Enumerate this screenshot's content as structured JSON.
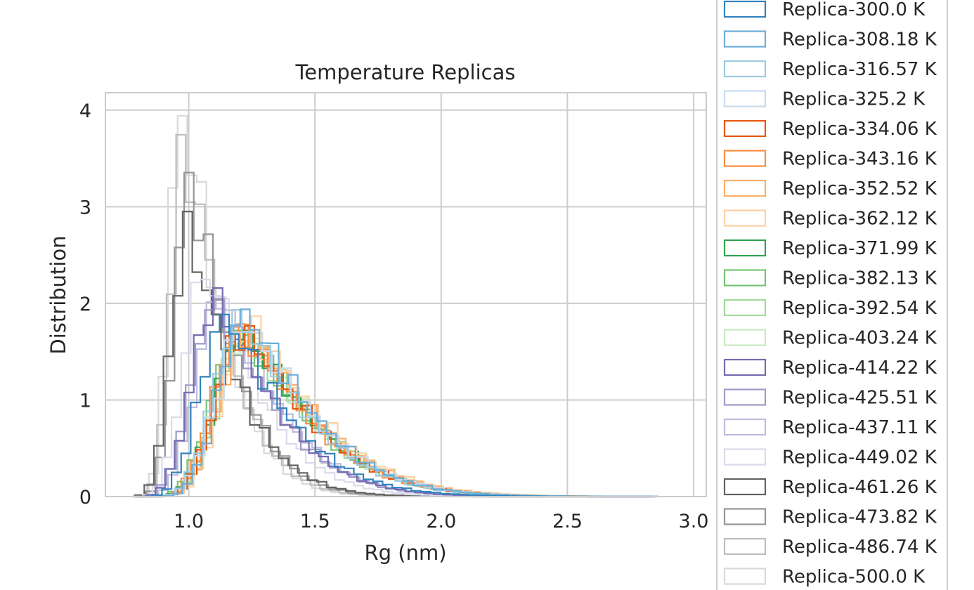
{
  "chart_data": {
    "type": "histogram-step",
    "title": "Temperature Replicas",
    "xlabel": "Rg (nm)",
    "ylabel": "Distribution",
    "xlim": [
      0.67,
      3.05
    ],
    "ylim": [
      0,
      4.18
    ],
    "x_ticks": [
      1.0,
      1.5,
      2.0,
      2.5,
      3.0
    ],
    "x_tick_labels": [
      "1.0",
      "1.5",
      "2.0",
      "2.5",
      "3.0"
    ],
    "y_ticks": [
      0,
      1,
      2,
      3,
      4
    ],
    "y_tick_labels": [
      "0",
      "1",
      "2",
      "3",
      "4"
    ],
    "grid": true,
    "legend_position": "right, outside",
    "series": [
      {
        "name": "Replica-300.0 K",
        "color": "#3182bd",
        "peak_x": 1.14,
        "peak_y": 1.83,
        "width": 0.17,
        "tail": 0.31
      },
      {
        "name": "Replica-308.18 K",
        "color": "#6baed6",
        "peak_x": 1.22,
        "peak_y": 1.88,
        "width": 0.18,
        "tail": 0.33
      },
      {
        "name": "Replica-316.57 K",
        "color": "#9ecae1",
        "peak_x": 1.2,
        "peak_y": 1.82,
        "width": 0.18,
        "tail": 0.33
      },
      {
        "name": "Replica-325.2 K",
        "color": "#c6dbef",
        "peak_x": 1.22,
        "peak_y": 1.78,
        "width": 0.19,
        "tail": 0.34
      },
      {
        "name": "Replica-334.06 K",
        "color": "#e6550d",
        "peak_x": 1.21,
        "peak_y": 1.7,
        "width": 0.18,
        "tail": 0.34
      },
      {
        "name": "Replica-343.16 K",
        "color": "#fd8d3c",
        "peak_x": 1.2,
        "peak_y": 1.72,
        "width": 0.18,
        "tail": 0.34
      },
      {
        "name": "Replica-352.52 K",
        "color": "#fdae6b",
        "peak_x": 1.23,
        "peak_y": 1.7,
        "width": 0.19,
        "tail": 0.35
      },
      {
        "name": "Replica-362.12 K",
        "color": "#fdd0a2",
        "peak_x": 1.24,
        "peak_y": 1.74,
        "width": 0.19,
        "tail": 0.35
      },
      {
        "name": "Replica-371.99 K",
        "color": "#31a354",
        "peak_x": 1.21,
        "peak_y": 1.68,
        "width": 0.19,
        "tail": 0.35
      },
      {
        "name": "Replica-382.13 K",
        "color": "#74c476",
        "peak_x": 1.2,
        "peak_y": 1.7,
        "width": 0.19,
        "tail": 0.34
      },
      {
        "name": "Replica-392.54 K",
        "color": "#a1d99b",
        "peak_x": 1.22,
        "peak_y": 1.66,
        "width": 0.19,
        "tail": 0.34
      },
      {
        "name": "Replica-403.24 K",
        "color": "#c7e9c0",
        "peak_x": 1.22,
        "peak_y": 1.68,
        "width": 0.19,
        "tail": 0.34
      },
      {
        "name": "Replica-414.22 K",
        "color": "#756bb1",
        "peak_x": 1.1,
        "peak_y": 2.02,
        "width": 0.16,
        "tail": 0.3
      },
      {
        "name": "Replica-425.51 K",
        "color": "#9e9ac8",
        "peak_x": 1.1,
        "peak_y": 1.98,
        "width": 0.16,
        "tail": 0.3
      },
      {
        "name": "Replica-437.11 K",
        "color": "#bcbddc",
        "peak_x": 1.12,
        "peak_y": 2.06,
        "width": 0.16,
        "tail": 0.29
      },
      {
        "name": "Replica-449.02 K",
        "color": "#dadaeb",
        "peak_x": 1.06,
        "peak_y": 2.32,
        "width": 0.14,
        "tail": 0.27
      },
      {
        "name": "Replica-461.26 K",
        "color": "#636363",
        "peak_x": 0.99,
        "peak_y": 2.7,
        "width": 0.11,
        "tail": 0.24
      },
      {
        "name": "Replica-473.82 K",
        "color": "#969696",
        "peak_x": 1.0,
        "peak_y": 3.2,
        "width": 0.1,
        "tail": 0.22
      },
      {
        "name": "Replica-486.74 K",
        "color": "#bdbdbd",
        "peak_x": 0.98,
        "peak_y": 3.55,
        "width": 0.09,
        "tail": 0.21
      },
      {
        "name": "Replica-500.0 K",
        "color": "#d9d9d9",
        "peak_x": 0.97,
        "peak_y": 3.98,
        "width": 0.085,
        "tail": 0.2
      }
    ]
  }
}
